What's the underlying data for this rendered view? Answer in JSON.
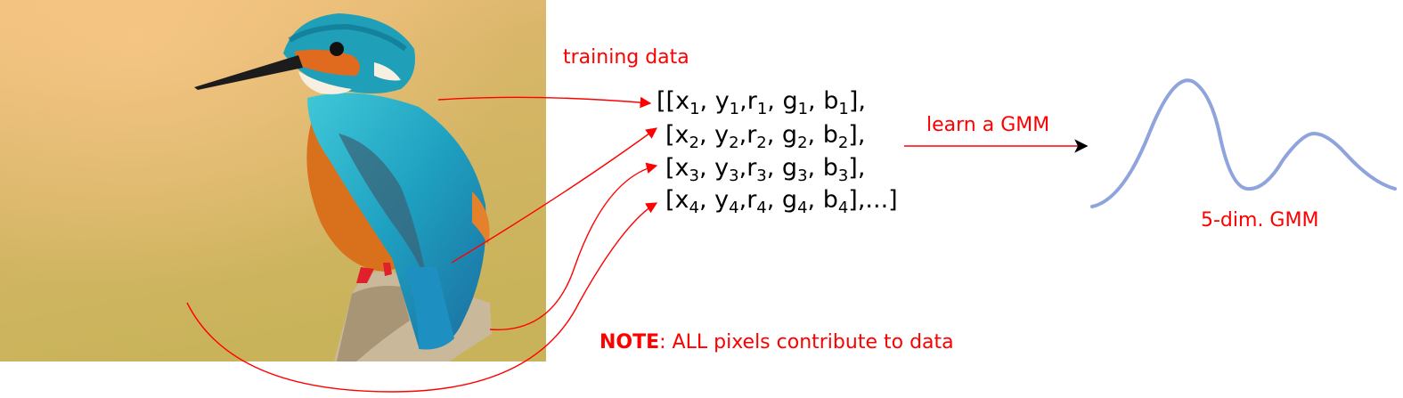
{
  "labels": {
    "training": "training data",
    "learn": "learn a GMM",
    "gmm": "5-dim. GMM",
    "note_bold": "NOTE",
    "note_rest": ": ALL pixels contribute to data"
  },
  "matrix": {
    "row1": {
      "open": "[[",
      "close": "],"
    },
    "row2": {
      "open": "[",
      "close": "],"
    },
    "row3": {
      "open": "[",
      "close": "],"
    },
    "row4": {
      "open": "[",
      "close": "],...]"
    },
    "vars": [
      "x",
      "y",
      "r",
      "g",
      "b"
    ],
    "indices": [
      "1",
      "2",
      "3",
      "4"
    ]
  },
  "colors": {
    "arrow": "#ff0000",
    "curve": "#8fa3dc",
    "text_accent": "#ff0000"
  },
  "image": {
    "subject": "kingfisher bird perched on branch"
  }
}
